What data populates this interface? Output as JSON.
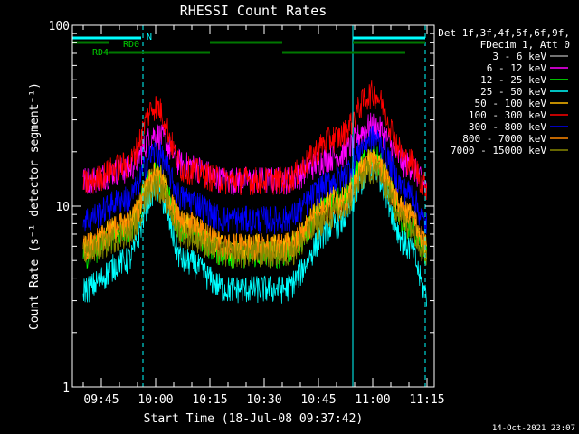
{
  "chart_data": {
    "type": "line",
    "title": "RHESSI Count Rates",
    "xlabel": "Start Time (18-Jul-08 09:37:42)",
    "ylabel": "Count Rate (s⁻¹ detector segment⁻¹)",
    "y_scale": "log",
    "ylim": [
      1,
      100
    ],
    "y_ticks": [
      {
        "value": 1,
        "label": "1"
      },
      {
        "value": 10,
        "label": "10"
      },
      {
        "value": 100,
        "label": "100"
      }
    ],
    "xlim_minutes": [
      -3,
      97
    ],
    "x_ticks": [
      {
        "min": 5,
        "label": "09:45"
      },
      {
        "min": 20,
        "label": "10:00"
      },
      {
        "min": 35,
        "label": "10:15"
      },
      {
        "min": 50,
        "label": "10:30"
      },
      {
        "min": 65,
        "label": "10:45"
      },
      {
        "min": 80,
        "label": "11:00"
      },
      {
        "min": 95,
        "label": "11:15"
      }
    ],
    "grid": false,
    "legend_title": [
      "Det 1f,3f,4f,5f,6f,9f,",
      "FDecim 1, Att 0"
    ],
    "legend_position": "right",
    "series": [
      {
        "name": "3 - 6 keV",
        "color": "#000000",
        "keypoints": [
          [
            0,
            6.5
          ],
          [
            12,
            7.5
          ],
          [
            20,
            18
          ],
          [
            28,
            7
          ],
          [
            40,
            4.5
          ],
          [
            55,
            4.5
          ],
          [
            70,
            11
          ],
          [
            80,
            20
          ],
          [
            90,
            8
          ],
          [
            95,
            5
          ]
        ]
      },
      {
        "name": "6 - 12 keV",
        "color": "#ff00ff",
        "keypoints": [
          [
            0,
            14
          ],
          [
            12,
            16
          ],
          [
            20,
            25
          ],
          [
            28,
            17
          ],
          [
            40,
            14
          ],
          [
            55,
            14
          ],
          [
            70,
            19
          ],
          [
            80,
            28
          ],
          [
            90,
            17
          ],
          [
            95,
            13
          ]
        ]
      },
      {
        "name": "12 - 25 keV",
        "color": "#00ff00",
        "keypoints": [
          [
            0,
            5.5
          ],
          [
            12,
            7.5
          ],
          [
            20,
            15
          ],
          [
            28,
            7.5
          ],
          [
            40,
            5.5
          ],
          [
            55,
            5.5
          ],
          [
            70,
            11
          ],
          [
            80,
            19
          ],
          [
            90,
            8
          ],
          [
            95,
            5.5
          ]
        ]
      },
      {
        "name": "25 - 50 keV",
        "color": "#00ffff",
        "keypoints": [
          [
            0,
            3.5
          ],
          [
            12,
            5
          ],
          [
            20,
            12.5
          ],
          [
            28,
            5
          ],
          [
            40,
            3.5
          ],
          [
            55,
            3.5
          ],
          [
            70,
            8
          ],
          [
            80,
            16
          ],
          [
            90,
            6
          ],
          [
            95,
            3.3
          ]
        ]
      },
      {
        "name": "50 - 100 keV",
        "color": "#ffbb00",
        "keypoints": [
          [
            0,
            6
          ],
          [
            12,
            8
          ],
          [
            20,
            15
          ],
          [
            28,
            8
          ],
          [
            40,
            6
          ],
          [
            55,
            6
          ],
          [
            70,
            11
          ],
          [
            80,
            18
          ],
          [
            90,
            9
          ],
          [
            95,
            6
          ]
        ]
      },
      {
        "name": "100 - 300 keV",
        "color": "#ff0000",
        "keypoints": [
          [
            0,
            13.5
          ],
          [
            12,
            17
          ],
          [
            20,
            36
          ],
          [
            28,
            16
          ],
          [
            40,
            14
          ],
          [
            55,
            14
          ],
          [
            70,
            24
          ],
          [
            80,
            42
          ],
          [
            90,
            18
          ],
          [
            95,
            13
          ]
        ]
      },
      {
        "name": "300 - 800 keV",
        "color": "#0000ff",
        "keypoints": [
          [
            0,
            8.5
          ],
          [
            12,
            11
          ],
          [
            20,
            20
          ],
          [
            28,
            11
          ],
          [
            40,
            8.5
          ],
          [
            55,
            8.5
          ],
          [
            70,
            14
          ],
          [
            80,
            24
          ],
          [
            90,
            12
          ],
          [
            95,
            8
          ]
        ]
      },
      {
        "name": "800 - 7000 keV",
        "color": "#ff8800",
        "keypoints": [
          [
            0,
            6
          ],
          [
            12,
            8
          ],
          [
            20,
            14
          ],
          [
            28,
            8
          ],
          [
            40,
            6
          ],
          [
            55,
            6
          ],
          [
            70,
            10
          ],
          [
            80,
            17
          ],
          [
            90,
            9
          ],
          [
            95,
            6
          ]
        ]
      },
      {
        "name": "7000 - 15000 keV",
        "color": "#888800",
        "keypoints": [
          [
            0,
            5.5
          ],
          [
            12,
            7
          ],
          [
            20,
            13
          ],
          [
            28,
            7
          ],
          [
            40,
            5.5
          ],
          [
            55,
            5.5
          ],
          [
            70,
            9
          ],
          [
            80,
            16
          ],
          [
            90,
            8
          ],
          [
            95,
            5.5
          ]
        ]
      }
    ],
    "vertical_lines": [
      {
        "min": 16.5,
        "style": "dashed",
        "color": "#00ffff"
      },
      {
        "min": 74.5,
        "style": "solid",
        "color": "#00ffff"
      },
      {
        "min": 94.5,
        "style": "dashed",
        "color": "#00ffff"
      }
    ],
    "state_bars": [
      {
        "label": "N",
        "color": "#00ffff",
        "row": "N",
        "segments": [
          [
            -3,
            16
          ],
          [
            74.5,
            94.5
          ]
        ]
      },
      {
        "label": "RD0",
        "color": "#007700",
        "row": "RD0",
        "segments": [
          [
            -3,
            7
          ],
          [
            35,
            55
          ],
          [
            74.5,
            94.5
          ]
        ]
      },
      {
        "label": "RD4",
        "color": "#007700",
        "row": "RD4",
        "segments": [
          [
            7,
            35
          ],
          [
            55,
            89
          ]
        ]
      }
    ],
    "timestamp": "14-Oct-2021 23:07"
  }
}
